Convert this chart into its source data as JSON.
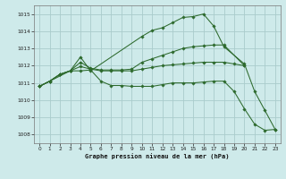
{
  "background_color": "#ceeaea",
  "grid_color": "#aacccc",
  "line_color": "#2d6a2d",
  "marker_color": "#2d6a2d",
  "xlabel": "Graphe pression niveau de la mer (hPa)",
  "xlim": [
    -0.5,
    23.5
  ],
  "ylim": [
    1007.5,
    1015.5
  ],
  "yticks": [
    1008,
    1009,
    1010,
    1011,
    1012,
    1013,
    1014,
    1015
  ],
  "xticks": [
    0,
    1,
    2,
    3,
    4,
    5,
    6,
    7,
    8,
    9,
    10,
    11,
    12,
    13,
    14,
    15,
    16,
    17,
    18,
    19,
    20,
    21,
    22,
    23
  ],
  "series": [
    {
      "x": [
        0,
        1,
        3,
        4,
        5,
        10,
        11,
        12,
        13,
        14,
        15,
        16,
        17,
        18,
        20,
        21,
        22,
        23
      ],
      "y": [
        1010.8,
        1011.1,
        1011.7,
        1012.5,
        1011.7,
        1013.7,
        1014.05,
        1014.2,
        1014.5,
        1014.8,
        1014.85,
        1015.0,
        1014.3,
        1013.1,
        1012.1,
        1010.5,
        1009.4,
        1008.3
      ]
    },
    {
      "x": [
        0,
        1,
        2,
        3,
        4,
        5,
        6,
        7,
        8,
        9,
        10,
        11,
        12,
        13,
        14,
        15,
        16,
        17,
        18,
        20
      ],
      "y": [
        1010.8,
        1011.1,
        1011.5,
        1011.7,
        1012.2,
        1011.85,
        1011.75,
        1011.75,
        1011.75,
        1011.8,
        1012.2,
        1012.4,
        1012.6,
        1012.8,
        1013.0,
        1013.1,
        1013.15,
        1013.2,
        1013.2,
        1012.0
      ]
    },
    {
      "x": [
        0,
        1,
        2,
        3,
        4,
        5,
        6,
        7,
        8,
        9,
        10,
        11,
        12,
        13,
        14,
        15,
        16,
        17,
        18,
        19,
        20
      ],
      "y": [
        1010.8,
        1011.1,
        1011.5,
        1011.7,
        1011.95,
        1011.8,
        1011.7,
        1011.7,
        1011.7,
        1011.7,
        1011.8,
        1011.9,
        1012.0,
        1012.05,
        1012.1,
        1012.15,
        1012.2,
        1012.2,
        1012.2,
        1012.1,
        1012.0
      ]
    },
    {
      "x": [
        0,
        1,
        2,
        3,
        4,
        5,
        6,
        7,
        8,
        9,
        10,
        11,
        12,
        13,
        14,
        15,
        16,
        17,
        18,
        19,
        20,
        21,
        22,
        23
      ],
      "y": [
        1010.8,
        1011.1,
        1011.5,
        1011.7,
        1011.7,
        1011.75,
        1011.1,
        1010.85,
        1010.85,
        1010.8,
        1010.8,
        1010.8,
        1010.9,
        1011.0,
        1011.0,
        1011.0,
        1011.05,
        1011.1,
        1011.1,
        1010.5,
        1009.5,
        1008.6,
        1008.25,
        1008.3
      ]
    }
  ]
}
